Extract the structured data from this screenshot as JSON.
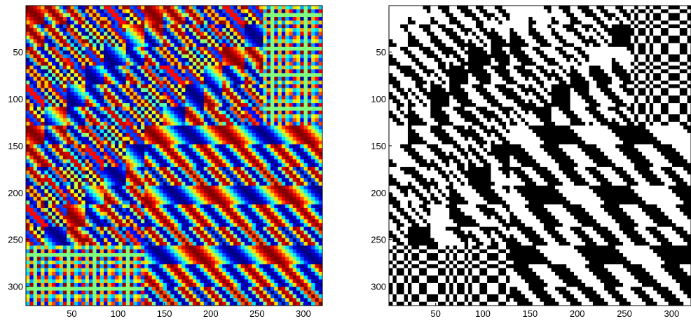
{
  "chart_data": [
    {
      "type": "heatmap",
      "colormap": "jet",
      "xlim": [
        0.5,
        320.5
      ],
      "ylim": [
        0.5,
        320.5
      ],
      "y_direction": "reversed",
      "x_ticks": [
        50,
        100,
        150,
        200,
        250,
        300
      ],
      "y_ticks": [
        50,
        100,
        150,
        200,
        250,
        300
      ],
      "x_tick_labels": [
        "50",
        "100",
        "150",
        "200",
        "250",
        "300"
      ],
      "y_tick_labels": [
        "50",
        "100",
        "150",
        "200",
        "250",
        "300"
      ],
      "xlabel": "",
      "ylabel": "",
      "title": "",
      "grid": false
    },
    {
      "type": "heatmap",
      "colormap": "binary",
      "xlim": [
        0.5,
        320.5
      ],
      "ylim": [
        0.5,
        320.5
      ],
      "y_direction": "reversed",
      "x_ticks": [
        50,
        100,
        150,
        200,
        250,
        300
      ],
      "y_ticks": [
        50,
        100,
        150,
        200,
        250,
        300
      ],
      "x_tick_labels": [
        "50",
        "100",
        "150",
        "200",
        "250",
        "300"
      ],
      "y_tick_labels": [
        "50",
        "100",
        "150",
        "200",
        "250",
        "300"
      ],
      "xlabel": "",
      "ylabel": "",
      "title": "",
      "grid": false
    }
  ]
}
